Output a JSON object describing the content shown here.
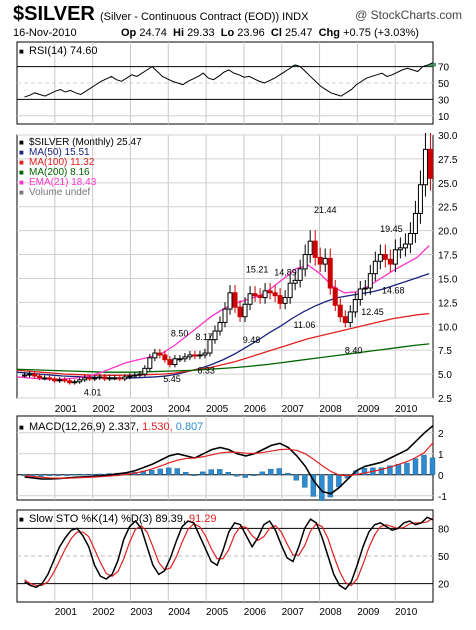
{
  "header": {
    "symbol": "$SILVER",
    "description": "(Silver - Continuous Contract (EOD))  INDX",
    "credit": "@ StockCharts.com",
    "date": "16-Nov-2010",
    "quote": {
      "open_label": "Op",
      "open": "24.74",
      "high_label": "Hi",
      "high": "29.33",
      "low_label": "Lo",
      "low": "23.96",
      "close_label": "Cl",
      "close": "25.47",
      "change_label": "Chg",
      "change": "+0.75 (+3.03%)"
    }
  },
  "colors": {
    "price_up": "#000000",
    "price_down": "#cc0000",
    "ma50": "#1a237e",
    "ma100": "#e02020",
    "ema21": "#ff33cc",
    "ma200": "#006400",
    "macd_line": "#000000",
    "signal_line": "#e02020",
    "histogram": "#2e8bd0",
    "rsi_fill": "#2e8b57",
    "sto_k": "#000000",
    "sto_d": "#e02020"
  },
  "chart_data": [
    {
      "type": "line",
      "title": "RSI(14) 74.60",
      "value": 74.6,
      "ylim": [
        0,
        100
      ],
      "y_ticks": [
        "70",
        "50",
        "30",
        "10"
      ],
      "reference_lines": [
        70,
        30
      ],
      "series": [
        {
          "values": [
            33,
            35,
            38,
            36,
            34,
            37,
            40,
            42,
            39,
            41,
            38,
            36,
            40,
            44,
            48,
            52,
            55,
            58,
            54,
            52,
            56,
            60,
            58,
            62,
            66,
            70,
            64,
            58,
            55,
            52,
            50,
            48,
            52,
            55,
            58,
            62,
            56,
            54,
            58,
            63,
            66,
            62,
            60,
            57,
            58,
            55,
            52,
            50,
            53,
            56,
            60,
            64,
            68,
            72,
            70,
            64,
            58,
            52,
            46,
            42,
            38,
            36,
            34,
            38,
            42,
            48,
            52,
            56,
            58,
            60,
            62,
            58,
            60,
            63,
            66,
            68,
            66,
            64,
            70,
            72,
            74.6
          ]
        }
      ]
    },
    {
      "type": "line",
      "title": "$SILVER (Monthly) 25.47",
      "ylim": [
        2.5,
        30
      ],
      "y_ticks": [
        "30.0",
        "27.5",
        "25.0",
        "22.5",
        "20.0",
        "17.5",
        "15.0",
        "12.5",
        "10.0",
        "7.5",
        "5.0",
        "2.5"
      ],
      "x_tick_labels": [
        "2001",
        "2002",
        "2003",
        "2004",
        "2005",
        "2006",
        "2007",
        "2008",
        "2009",
        "2010"
      ],
      "legend": [
        {
          "label": "$SILVER (Monthly) 25.47",
          "color": "#000000"
        },
        {
          "label": "MA(50) 15.51",
          "color": "#1a237e"
        },
        {
          "label": "MA(100) 11.32",
          "color": "#e02020"
        },
        {
          "label": "MA(200) 8.16",
          "color": "#006400"
        },
        {
          "label": "EMA(21) 18.43",
          "color": "#ff33cc"
        },
        {
          "label": "Volume undef",
          "color": "#777777"
        }
      ],
      "annotations": [
        {
          "text": "4.01",
          "x": 2002.0,
          "y": 4.01
        },
        {
          "text": "8.50",
          "x": 2004.3,
          "y": 8.5
        },
        {
          "text": "8.17",
          "x": 2004.95,
          "y": 8.17
        },
        {
          "text": "5.45",
          "x": 2004.1,
          "y": 5.45
        },
        {
          "text": "6.33",
          "x": 2005.0,
          "y": 6.33
        },
        {
          "text": "15.21",
          "x": 2006.35,
          "y": 15.21
        },
        {
          "text": "9.48",
          "x": 2006.2,
          "y": 9.48
        },
        {
          "text": "14.89",
          "x": 2007.1,
          "y": 14.89
        },
        {
          "text": "11.06",
          "x": 2007.6,
          "y": 11.06
        },
        {
          "text": "21.44",
          "x": 2008.15,
          "y": 21.44
        },
        {
          "text": "8.40",
          "x": 2008.9,
          "y": 8.4
        },
        {
          "text": "12.45",
          "x": 2009.4,
          "y": 12.45
        },
        {
          "text": "14.68",
          "x": 2009.95,
          "y": 14.68
        },
        {
          "text": "19.45",
          "x": 2009.9,
          "y": 19.45
        }
      ],
      "close_series": {
        "x_start": 2000.0,
        "x_step": 0.1325,
        "values": [
          4.9,
          5.0,
          4.8,
          4.6,
          4.6,
          4.5,
          4.3,
          4.4,
          4.3,
          4.1,
          4.2,
          4.4,
          4.6,
          4.5,
          4.6,
          4.7,
          4.5,
          4.6,
          4.6,
          4.5,
          4.7,
          4.8,
          4.9,
          5.0,
          5.6,
          6.7,
          7.2,
          7.0,
          6.5,
          6.0,
          6.6,
          6.6,
          6.8,
          7.0,
          6.9,
          7.0,
          7.2,
          8.6,
          9.5,
          10.4,
          11.8,
          13.5,
          12.0,
          11.0,
          12.3,
          13.4,
          13.2,
          13.0,
          13.7,
          13.5,
          13.2,
          12.4,
          13.0,
          14.5,
          14.8,
          16.0,
          17.5,
          18.9,
          17.2,
          16.5,
          17.1,
          14.0,
          12.2,
          11.0,
          10.4,
          11.5,
          12.8,
          13.9,
          14.0,
          15.5,
          16.8,
          17.5,
          17.0,
          16.5,
          18.0,
          18.2,
          18.6,
          19.7,
          21.8,
          24.8,
          28.5,
          25.47
        ]
      },
      "moving_averages": {
        "MA(50)": [
          5.2,
          5.1,
          5.0,
          4.9,
          4.8,
          4.75,
          4.7,
          4.65,
          4.6,
          4.6,
          4.6,
          4.65,
          4.7,
          4.8,
          5.0,
          5.3,
          5.6,
          6.0,
          6.5,
          7.1,
          7.8,
          8.5,
          9.3,
          10.0,
          10.8,
          11.5,
          12.1,
          12.6,
          13.0,
          13.2,
          13.4,
          13.6,
          13.9,
          14.3,
          14.7,
          15.1,
          15.51
        ],
        "MA(100)": [
          5.4,
          5.3,
          5.2,
          5.1,
          5.0,
          4.95,
          4.9,
          4.88,
          4.87,
          4.88,
          4.9,
          4.95,
          5.0,
          5.1,
          5.3,
          5.5,
          5.7,
          6.0,
          6.3,
          6.7,
          7.1,
          7.5,
          7.9,
          8.3,
          8.7,
          9.0,
          9.3,
          9.6,
          9.9,
          10.2,
          10.5,
          10.8,
          11.0,
          11.2,
          11.32
        ],
        "MA(200)": [
          5.5,
          5.45,
          5.4,
          5.35,
          5.3,
          5.25,
          5.2,
          5.2,
          5.2,
          5.25,
          5.3,
          5.35,
          5.4,
          5.5,
          5.6,
          5.7,
          5.85,
          6.0,
          6.2,
          6.4,
          6.6,
          6.8,
          7.0,
          7.2,
          7.4,
          7.6,
          7.8,
          8.0,
          8.16
        ],
        "EMA(21)": [
          4.7,
          4.6,
          4.5,
          4.45,
          4.5,
          4.6,
          4.8,
          5.2,
          5.7,
          6.2,
          6.5,
          6.8,
          7.2,
          8.0,
          9.0,
          10.0,
          11.0,
          11.8,
          12.4,
          12.8,
          13.2,
          14.0,
          15.0,
          16.0,
          16.4,
          15.5,
          14.2,
          13.5,
          13.6,
          14.2,
          15.0,
          15.8,
          16.5,
          17.2,
          18.43
        ]
      }
    },
    {
      "type": "line",
      "title": "MACD(12,26,9) 2.337, 1.530, 0.807",
      "values": [
        2.337,
        1.53,
        0.807
      ],
      "ylim": [
        -1.2,
        2.8
      ],
      "y_ticks": [
        "2",
        "1",
        "0",
        "-1"
      ],
      "series": [
        {
          "name": "MACD",
          "values": [
            -0.1,
            -0.15,
            -0.2,
            -0.2,
            -0.18,
            -0.15,
            -0.12,
            -0.1,
            -0.08,
            -0.05,
            0.0,
            0.05,
            0.1,
            0.2,
            0.35,
            0.5,
            0.7,
            0.9,
            1.0,
            0.9,
            0.8,
            1.0,
            1.2,
            1.3,
            1.2,
            1.0,
            0.9,
            1.0,
            1.2,
            1.4,
            1.5,
            1.3,
            0.9,
            0.4,
            -0.3,
            -0.8,
            -0.9,
            -0.6,
            -0.2,
            0.2,
            0.4,
            0.5,
            0.6,
            0.8,
            1.0,
            1.2,
            1.6,
            2.0,
            2.337
          ]
        },
        {
          "name": "Signal",
          "values": [
            -0.05,
            -0.08,
            -0.12,
            -0.15,
            -0.16,
            -0.16,
            -0.15,
            -0.13,
            -0.11,
            -0.09,
            -0.06,
            -0.03,
            0.02,
            0.08,
            0.17,
            0.28,
            0.42,
            0.57,
            0.7,
            0.78,
            0.8,
            0.86,
            0.95,
            1.04,
            1.08,
            1.07,
            1.03,
            1.02,
            1.06,
            1.13,
            1.2,
            1.22,
            1.16,
            1.0,
            0.73,
            0.43,
            0.16,
            -0.02,
            -0.04,
            0.01,
            0.09,
            0.17,
            0.26,
            0.37,
            0.5,
            0.64,
            0.83,
            1.06,
            1.53
          ]
        }
      ]
    },
    {
      "type": "line",
      "title": "Slow STO %K(14) %D(3) 89.39, 91.29",
      "values": [
        89.39,
        91.29
      ],
      "ylim": [
        0,
        100
      ],
      "y_ticks": [
        "80",
        "50",
        "20"
      ],
      "reference_lines": [
        80,
        20
      ],
      "series": [
        {
          "name": "%K",
          "values": [
            22,
            18,
            16,
            20,
            30,
            45,
            60,
            70,
            78,
            80,
            72,
            60,
            40,
            28,
            25,
            30,
            45,
            68,
            82,
            88,
            80,
            60,
            40,
            30,
            34,
            48,
            66,
            82,
            88,
            86,
            72,
            58,
            44,
            40,
            56,
            76,
            86,
            84,
            72,
            60,
            70,
            84,
            88,
            78,
            62,
            48,
            44,
            60,
            80,
            90,
            86,
            70,
            50,
            30,
            18,
            14,
            22,
            40,
            60,
            76,
            84,
            86,
            82,
            78,
            80,
            86,
            88,
            84,
            86,
            92,
            89.39
          ]
        },
        {
          "name": "%D",
          "values": [
            24,
            20,
            18,
            18,
            22,
            32,
            45,
            58,
            69,
            76,
            76,
            71,
            57,
            43,
            31,
            28,
            33,
            47,
            65,
            79,
            83,
            76,
            60,
            43,
            35,
            37,
            49,
            65,
            79,
            85,
            82,
            72,
            58,
            47,
            47,
            57,
            73,
            82,
            81,
            72,
            67,
            71,
            80,
            83,
            76,
            63,
            51,
            51,
            61,
            77,
            85,
            82,
            69,
            50,
            33,
            21,
            18,
            25,
            41,
            59,
            73,
            82,
            84,
            82,
            80,
            81,
            85,
            86,
            86,
            87,
            91.29
          ]
        }
      ]
    }
  ]
}
